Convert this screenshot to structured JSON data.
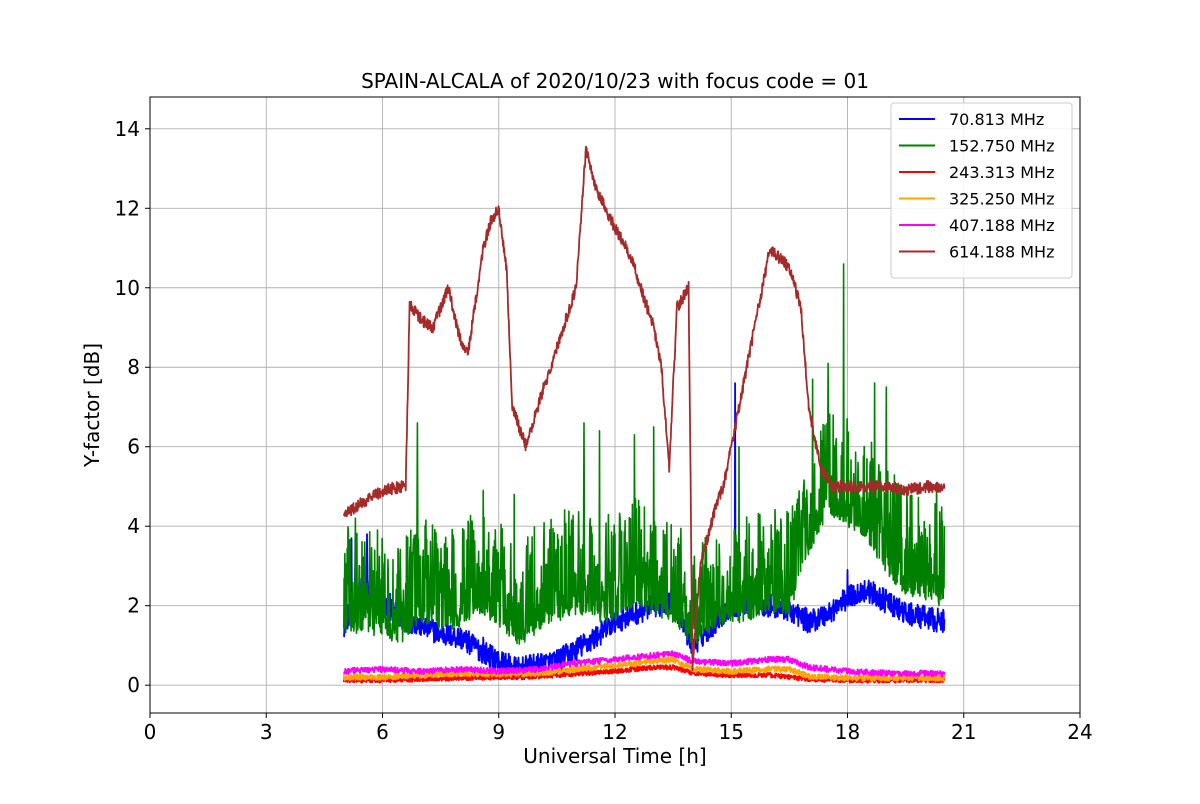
{
  "chart_data": {
    "type": "line",
    "title": "SPAIN-ALCALA of 2020/10/23 with focus code = 01",
    "xlabel": "Universal Time [h]",
    "ylabel": "Y-factor [dB]",
    "xlim": [
      0,
      24
    ],
    "ylim": [
      -0.7,
      14.8
    ],
    "xticks": [
      0,
      3,
      6,
      9,
      12,
      15,
      18,
      21,
      24
    ],
    "yticks": [
      0,
      2,
      4,
      6,
      8,
      10,
      12,
      14
    ],
    "grid": true,
    "legend_position": "top-right",
    "series": [
      {
        "name": " 70.813 MHz",
        "color": "#0000ff",
        "x": [
          5.0,
          5.5,
          6.0,
          6.5,
          7.0,
          7.5,
          8.0,
          8.5,
          9.0,
          9.5,
          10.0,
          10.5,
          11.0,
          11.5,
          12.0,
          12.5,
          13.0,
          13.5,
          14.0,
          14.5,
          15.0,
          15.5,
          16.0,
          16.5,
          17.0,
          17.5,
          18.0,
          18.5,
          19.0,
          19.5,
          20.0,
          20.5
        ],
        "values": [
          1.5,
          2.5,
          2.0,
          1.7,
          1.5,
          1.3,
          1.2,
          0.9,
          0.6,
          0.4,
          0.5,
          0.6,
          0.9,
          1.2,
          1.6,
          1.8,
          2.0,
          2.1,
          1.0,
          1.5,
          2.0,
          2.1,
          2.0,
          1.9,
          1.6,
          1.8,
          2.2,
          2.4,
          2.1,
          1.8,
          1.7,
          1.6
        ],
        "spikes": [
          [
            5.2,
            3.7
          ],
          [
            5.6,
            3.8
          ],
          [
            6.2,
            2.3
          ],
          [
            8.6,
            1.2
          ],
          [
            13.5,
            2.8
          ],
          [
            15.1,
            7.6
          ],
          [
            18.0,
            2.9
          ]
        ],
        "noise": 0.6
      },
      {
        "name": "152.750 MHz",
        "color": "#008000",
        "x": [
          5.0,
          5.5,
          6.0,
          6.5,
          7.0,
          7.5,
          8.0,
          8.5,
          9.0,
          9.5,
          10.0,
          10.5,
          11.0,
          11.5,
          12.0,
          12.5,
          13.0,
          13.5,
          14.0,
          14.5,
          15.0,
          15.5,
          16.0,
          16.5,
          17.0,
          17.5,
          18.0,
          18.5,
          19.0,
          19.5,
          20.0,
          20.5
        ],
        "values": [
          1.5,
          1.5,
          1.5,
          1.2,
          1.8,
          1.5,
          1.7,
          2.0,
          1.7,
          1.2,
          1.5,
          1.8,
          2.0,
          1.8,
          1.8,
          2.2,
          2.0,
          1.8,
          1.2,
          1.6,
          1.8,
          1.8,
          2.0,
          2.0,
          3.5,
          4.5,
          4.2,
          3.8,
          3.0,
          2.5,
          2.3,
          2.2
        ],
        "spikes": [
          [
            5.3,
            4.2
          ],
          [
            6.9,
            6.6
          ],
          [
            8.6,
            4.9
          ],
          [
            9.4,
            4.8
          ],
          [
            11.2,
            6.6
          ],
          [
            11.6,
            6.4
          ],
          [
            12.5,
            6.3
          ],
          [
            13.0,
            6.5
          ],
          [
            15.2,
            6.0
          ],
          [
            17.1,
            7.7
          ],
          [
            17.5,
            8.1
          ],
          [
            17.9,
            10.6
          ],
          [
            18.7,
            7.6
          ],
          [
            19.0,
            7.5
          ],
          [
            20.3,
            5.1
          ]
        ],
        "noise": 2.6
      },
      {
        "name": "243.313 MHz",
        "color": "#ff0000",
        "x": [
          5.0,
          6.0,
          7.0,
          8.0,
          9.0,
          10.0,
          11.0,
          12.0,
          13.0,
          13.5,
          14.0,
          15.0,
          16.0,
          17.0,
          18.0,
          19.0,
          20.0,
          20.5
        ],
        "values": [
          0.12,
          0.12,
          0.15,
          0.18,
          0.2,
          0.22,
          0.28,
          0.35,
          0.45,
          0.45,
          0.3,
          0.25,
          0.25,
          0.15,
          0.12,
          0.12,
          0.12,
          0.12
        ],
        "spikes": [],
        "noise": 0.12
      },
      {
        "name": "325.250 MHz",
        "color": "#ffa500",
        "x": [
          5.0,
          6.0,
          7.0,
          8.0,
          9.0,
          10.0,
          11.0,
          12.0,
          13.0,
          13.5,
          14.0,
          15.0,
          16.0,
          16.5,
          17.0,
          18.0,
          19.0,
          20.0,
          20.5
        ],
        "values": [
          0.2,
          0.2,
          0.25,
          0.3,
          0.28,
          0.3,
          0.4,
          0.5,
          0.6,
          0.65,
          0.4,
          0.35,
          0.4,
          0.4,
          0.22,
          0.18,
          0.18,
          0.18,
          0.18
        ],
        "spikes": [],
        "noise": 0.15
      },
      {
        "name": "407.188 MHz",
        "color": "#ff00ff",
        "x": [
          5.0,
          6.0,
          7.0,
          8.0,
          9.0,
          10.0,
          11.0,
          12.0,
          13.0,
          13.5,
          14.0,
          15.0,
          16.0,
          16.5,
          17.0,
          18.0,
          19.0,
          20.0,
          20.5
        ],
        "values": [
          0.35,
          0.4,
          0.35,
          0.4,
          0.35,
          0.4,
          0.55,
          0.65,
          0.75,
          0.8,
          0.6,
          0.55,
          0.65,
          0.65,
          0.45,
          0.35,
          0.3,
          0.3,
          0.28
        ],
        "spikes": [],
        "noise": 0.15
      },
      {
        "name": "614.188 MHz",
        "color": "#a52a2a",
        "x": [
          5.0,
          5.5,
          6.0,
          6.5,
          6.6,
          6.7,
          7.0,
          7.3,
          7.7,
          8.0,
          8.2,
          8.6,
          8.8,
          9.0,
          9.2,
          9.35,
          9.7,
          10.0,
          10.5,
          11.0,
          11.25,
          11.5,
          12.0,
          12.3,
          12.5,
          13.0,
          13.2,
          13.4,
          13.6,
          13.9,
          14.0,
          14.2,
          14.6,
          14.8,
          15.0,
          15.3,
          15.6,
          16.0,
          16.5,
          16.8,
          17.0,
          17.3,
          17.6,
          18.0,
          18.5,
          19.0,
          19.5,
          20.0,
          20.5
        ],
        "values": [
          4.3,
          4.6,
          4.9,
          5.0,
          5.0,
          9.6,
          9.2,
          9.0,
          10.0,
          8.7,
          8.3,
          11.0,
          11.7,
          12.0,
          10.5,
          7.0,
          6.0,
          7.0,
          8.5,
          10.0,
          13.5,
          12.5,
          11.5,
          11.0,
          10.5,
          9.0,
          8.0,
          5.5,
          9.5,
          10.0,
          0.4,
          3.0,
          4.5,
          5.0,
          6.0,
          7.5,
          9.0,
          11.0,
          10.5,
          9.5,
          7.0,
          5.5,
          5.0,
          5.0,
          5.0,
          5.0,
          4.9,
          5.0,
          5.0
        ],
        "spikes": [],
        "noise": 0.3
      }
    ]
  }
}
